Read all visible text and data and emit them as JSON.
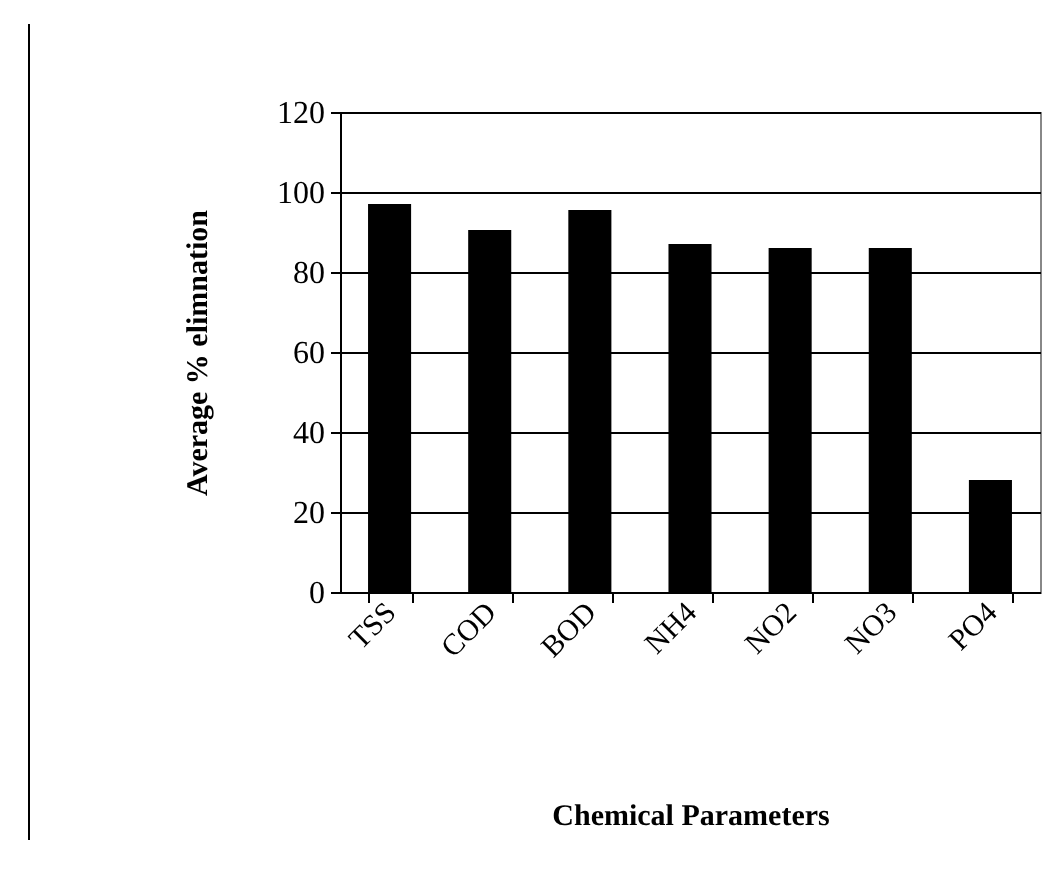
{
  "chart_data": {
    "type": "bar",
    "xlabel": "Chemical Parameters",
    "ylabel": "Average % elimnation",
    "categories": [
      "TSS",
      "COD",
      "BOD",
      "NH4",
      "NO2",
      "NO3",
      "PO4"
    ],
    "values": [
      97,
      90.5,
      95.5,
      87,
      86,
      86,
      28
    ],
    "color": "#000000",
    "ylim": [
      0,
      120
    ],
    "yticks": [
      0,
      20,
      40,
      60,
      80,
      100,
      120
    ],
    "grid": "y"
  }
}
